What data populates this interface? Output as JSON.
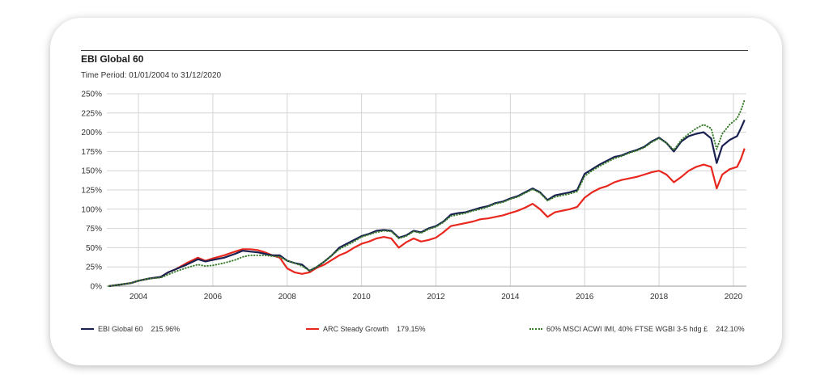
{
  "chart_title": "EBI Global 60",
  "time_period": "Time Period: 01/01/2004 to 31/12/2020",
  "chart_data": {
    "type": "line",
    "title": "EBI Global 60",
    "subtitle": "Time Period: 01/01/2004 to 31/12/2020",
    "xlabel": "",
    "ylabel": "",
    "xlim": [
      2003.15,
      2020.35
    ],
    "ylim": [
      0,
      250
    ],
    "y_ticks": [
      0,
      25,
      50,
      75,
      100,
      125,
      150,
      175,
      200,
      225,
      250
    ],
    "y_tick_labels": [
      "0%",
      "25%",
      "50%",
      "75%",
      "100%",
      "125%",
      "150%",
      "175%",
      "200%",
      "225%",
      "250%"
    ],
    "x_gridlines": [
      2004,
      2006,
      2008,
      2010,
      2012,
      2014,
      2016,
      2018,
      2020
    ],
    "x_tick_labels": [
      "2004",
      "2006",
      "2008",
      "2010",
      "2012",
      "2014",
      "2016",
      "2018",
      "2020"
    ],
    "grid": true,
    "legend_position": "bottom",
    "series": [
      {
        "name": "EBI Global 60",
        "end_label": "215.96%",
        "color": "#1a2150",
        "style": "solid",
        "points": [
          [
            2003.2,
            0
          ],
          [
            2003.5,
            2
          ],
          [
            2003.8,
            4
          ],
          [
            2004.0,
            7
          ],
          [
            2004.3,
            10
          ],
          [
            2004.6,
            12
          ],
          [
            2004.8,
            18
          ],
          [
            2005.0,
            22
          ],
          [
            2005.3,
            28
          ],
          [
            2005.6,
            35
          ],
          [
            2005.8,
            32
          ],
          [
            2006.0,
            34
          ],
          [
            2006.3,
            37
          ],
          [
            2006.6,
            42
          ],
          [
            2006.8,
            46
          ],
          [
            2007.0,
            45
          ],
          [
            2007.2,
            44
          ],
          [
            2007.4,
            42
          ],
          [
            2007.6,
            40
          ],
          [
            2007.8,
            40
          ],
          [
            2008.0,
            33
          ],
          [
            2008.2,
            30
          ],
          [
            2008.4,
            28
          ],
          [
            2008.6,
            20
          ],
          [
            2008.8,
            25
          ],
          [
            2009.0,
            32
          ],
          [
            2009.2,
            40
          ],
          [
            2009.4,
            50
          ],
          [
            2009.6,
            55
          ],
          [
            2009.8,
            60
          ],
          [
            2010.0,
            65
          ],
          [
            2010.2,
            68
          ],
          [
            2010.4,
            72
          ],
          [
            2010.6,
            73
          ],
          [
            2010.8,
            72
          ],
          [
            2011.0,
            63
          ],
          [
            2011.2,
            66
          ],
          [
            2011.4,
            72
          ],
          [
            2011.6,
            70
          ],
          [
            2011.8,
            75
          ],
          [
            2012.0,
            78
          ],
          [
            2012.2,
            84
          ],
          [
            2012.4,
            93
          ],
          [
            2012.6,
            95
          ],
          [
            2012.8,
            96
          ],
          [
            2013.0,
            99
          ],
          [
            2013.2,
            102
          ],
          [
            2013.4,
            104
          ],
          [
            2013.6,
            108
          ],
          [
            2013.8,
            110
          ],
          [
            2014.0,
            114
          ],
          [
            2014.2,
            117
          ],
          [
            2014.4,
            122
          ],
          [
            2014.6,
            127
          ],
          [
            2014.8,
            122
          ],
          [
            2015.0,
            112
          ],
          [
            2015.2,
            118
          ],
          [
            2015.4,
            120
          ],
          [
            2015.6,
            122
          ],
          [
            2015.8,
            125
          ],
          [
            2016.0,
            146
          ],
          [
            2016.2,
            152
          ],
          [
            2016.4,
            158
          ],
          [
            2016.6,
            163
          ],
          [
            2016.8,
            168
          ],
          [
            2017.0,
            170
          ],
          [
            2017.2,
            174
          ],
          [
            2017.4,
            177
          ],
          [
            2017.6,
            181
          ],
          [
            2017.8,
            188
          ],
          [
            2018.0,
            193
          ],
          [
            2018.2,
            186
          ],
          [
            2018.4,
            175
          ],
          [
            2018.6,
            188
          ],
          [
            2018.8,
            195
          ],
          [
            2019.0,
            198
          ],
          [
            2019.2,
            200
          ],
          [
            2019.4,
            192
          ],
          [
            2019.55,
            160
          ],
          [
            2019.7,
            182
          ],
          [
            2019.9,
            190
          ],
          [
            2020.1,
            195
          ],
          [
            2020.2,
            205
          ],
          [
            2020.3,
            216
          ]
        ]
      },
      {
        "name": "ARC Steady Growth",
        "end_label": "179.15%",
        "color": "#e8281e",
        "style": "solid",
        "points": [
          [
            2003.2,
            0
          ],
          [
            2003.5,
            2
          ],
          [
            2003.8,
            4
          ],
          [
            2004.0,
            7
          ],
          [
            2004.3,
            10
          ],
          [
            2004.6,
            12
          ],
          [
            2004.8,
            18
          ],
          [
            2005.0,
            22
          ],
          [
            2005.3,
            30
          ],
          [
            2005.6,
            37
          ],
          [
            2005.8,
            33
          ],
          [
            2006.0,
            36
          ],
          [
            2006.3,
            40
          ],
          [
            2006.6,
            45
          ],
          [
            2006.8,
            48
          ],
          [
            2007.0,
            48
          ],
          [
            2007.2,
            47
          ],
          [
            2007.4,
            44
          ],
          [
            2007.6,
            40
          ],
          [
            2007.8,
            37
          ],
          [
            2008.0,
            23
          ],
          [
            2008.2,
            18
          ],
          [
            2008.4,
            16
          ],
          [
            2008.6,
            18
          ],
          [
            2008.8,
            24
          ],
          [
            2009.0,
            28
          ],
          [
            2009.2,
            34
          ],
          [
            2009.4,
            40
          ],
          [
            2009.6,
            44
          ],
          [
            2009.8,
            50
          ],
          [
            2010.0,
            55
          ],
          [
            2010.2,
            58
          ],
          [
            2010.4,
            62
          ],
          [
            2010.6,
            64
          ],
          [
            2010.8,
            62
          ],
          [
            2011.0,
            50
          ],
          [
            2011.2,
            57
          ],
          [
            2011.4,
            62
          ],
          [
            2011.6,
            58
          ],
          [
            2011.8,
            60
          ],
          [
            2012.0,
            63
          ],
          [
            2012.2,
            70
          ],
          [
            2012.4,
            78
          ],
          [
            2012.6,
            80
          ],
          [
            2012.8,
            82
          ],
          [
            2013.0,
            84
          ],
          [
            2013.2,
            87
          ],
          [
            2013.4,
            88
          ],
          [
            2013.6,
            90
          ],
          [
            2013.8,
            92
          ],
          [
            2014.0,
            95
          ],
          [
            2014.2,
            98
          ],
          [
            2014.4,
            102
          ],
          [
            2014.6,
            107
          ],
          [
            2014.8,
            100
          ],
          [
            2015.0,
            90
          ],
          [
            2015.2,
            96
          ],
          [
            2015.4,
            98
          ],
          [
            2015.6,
            100
          ],
          [
            2015.8,
            103
          ],
          [
            2016.0,
            115
          ],
          [
            2016.2,
            122
          ],
          [
            2016.4,
            127
          ],
          [
            2016.6,
            130
          ],
          [
            2016.8,
            135
          ],
          [
            2017.0,
            138
          ],
          [
            2017.2,
            140
          ],
          [
            2017.4,
            142
          ],
          [
            2017.6,
            145
          ],
          [
            2017.8,
            148
          ],
          [
            2018.0,
            150
          ],
          [
            2018.2,
            145
          ],
          [
            2018.4,
            135
          ],
          [
            2018.6,
            142
          ],
          [
            2018.8,
            150
          ],
          [
            2019.0,
            155
          ],
          [
            2019.2,
            158
          ],
          [
            2019.4,
            155
          ],
          [
            2019.55,
            127
          ],
          [
            2019.7,
            145
          ],
          [
            2019.9,
            152
          ],
          [
            2020.1,
            155
          ],
          [
            2020.2,
            165
          ],
          [
            2020.3,
            179
          ]
        ]
      },
      {
        "name": "60% MSCI ACWI IMI, 40% FTSE WGBI 3-5 hdg £",
        "end_label": "242.10%",
        "color": "#3a7d2c",
        "style": "dotted",
        "points": [
          [
            2003.2,
            0
          ],
          [
            2003.5,
            2
          ],
          [
            2003.8,
            4
          ],
          [
            2004.0,
            7
          ],
          [
            2004.3,
            10
          ],
          [
            2004.6,
            11
          ],
          [
            2004.8,
            15
          ],
          [
            2005.0,
            19
          ],
          [
            2005.3,
            24
          ],
          [
            2005.6,
            28
          ],
          [
            2005.8,
            26
          ],
          [
            2006.0,
            27
          ],
          [
            2006.3,
            30
          ],
          [
            2006.6,
            34
          ],
          [
            2006.8,
            38
          ],
          [
            2007.0,
            40
          ],
          [
            2007.2,
            40
          ],
          [
            2007.4,
            40
          ],
          [
            2007.6,
            39
          ],
          [
            2007.8,
            38
          ],
          [
            2008.0,
            33
          ],
          [
            2008.2,
            30
          ],
          [
            2008.4,
            26
          ],
          [
            2008.6,
            20
          ],
          [
            2008.8,
            25
          ],
          [
            2009.0,
            32
          ],
          [
            2009.2,
            40
          ],
          [
            2009.4,
            48
          ],
          [
            2009.6,
            53
          ],
          [
            2009.8,
            58
          ],
          [
            2010.0,
            64
          ],
          [
            2010.2,
            67
          ],
          [
            2010.4,
            70
          ],
          [
            2010.6,
            72
          ],
          [
            2010.8,
            71
          ],
          [
            2011.0,
            62
          ],
          [
            2011.2,
            65
          ],
          [
            2011.4,
            71
          ],
          [
            2011.6,
            69
          ],
          [
            2011.8,
            74
          ],
          [
            2012.0,
            77
          ],
          [
            2012.2,
            83
          ],
          [
            2012.4,
            91
          ],
          [
            2012.6,
            93
          ],
          [
            2012.8,
            95
          ],
          [
            2013.0,
            98
          ],
          [
            2013.2,
            100
          ],
          [
            2013.4,
            103
          ],
          [
            2013.6,
            107
          ],
          [
            2013.8,
            109
          ],
          [
            2014.0,
            113
          ],
          [
            2014.2,
            116
          ],
          [
            2014.4,
            121
          ],
          [
            2014.6,
            126
          ],
          [
            2014.8,
            121
          ],
          [
            2015.0,
            111
          ],
          [
            2015.2,
            116
          ],
          [
            2015.4,
            118
          ],
          [
            2015.6,
            120
          ],
          [
            2015.8,
            123
          ],
          [
            2016.0,
            143
          ],
          [
            2016.2,
            150
          ],
          [
            2016.4,
            156
          ],
          [
            2016.6,
            161
          ],
          [
            2016.8,
            166
          ],
          [
            2017.0,
            169
          ],
          [
            2017.2,
            173
          ],
          [
            2017.4,
            176
          ],
          [
            2017.6,
            180
          ],
          [
            2017.8,
            187
          ],
          [
            2018.0,
            192
          ],
          [
            2018.2,
            186
          ],
          [
            2018.4,
            177
          ],
          [
            2018.6,
            190
          ],
          [
            2018.8,
            198
          ],
          [
            2019.0,
            205
          ],
          [
            2019.2,
            210
          ],
          [
            2019.4,
            205
          ],
          [
            2019.55,
            178
          ],
          [
            2019.7,
            198
          ],
          [
            2019.9,
            210
          ],
          [
            2020.1,
            218
          ],
          [
            2020.2,
            228
          ],
          [
            2020.3,
            242
          ]
        ]
      }
    ]
  }
}
